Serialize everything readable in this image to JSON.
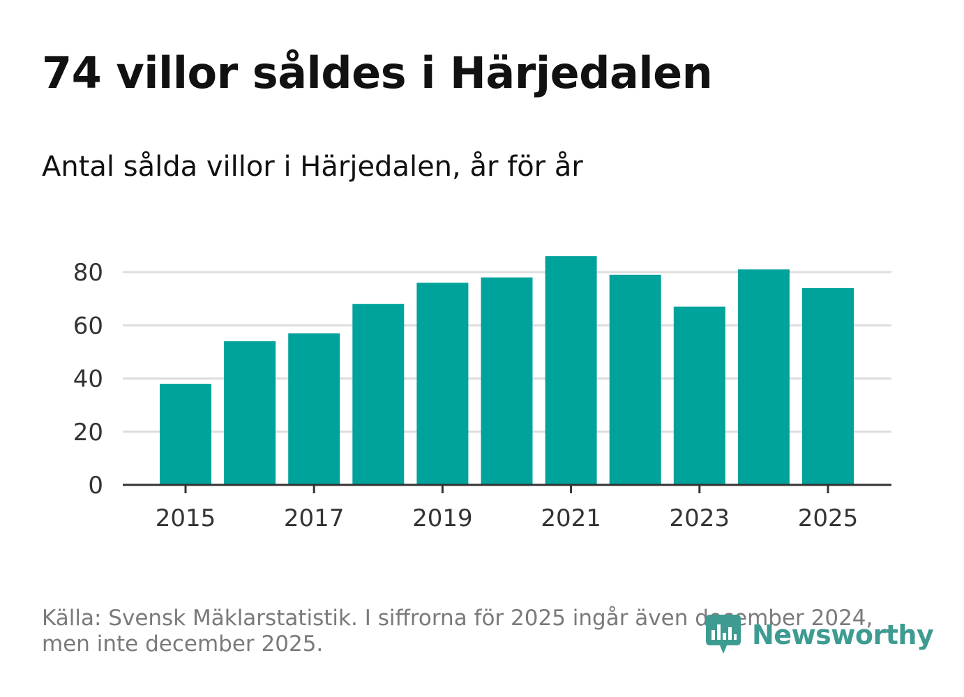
{
  "header": {
    "title": "74 villor såldes i Härjedalen",
    "subtitle": "Antal sålda villor i Härjedalen, år för år"
  },
  "chart_data": {
    "type": "bar",
    "categories": [
      "2015",
      "2016",
      "2017",
      "2018",
      "2019",
      "2020",
      "2021",
      "2022",
      "2023",
      "2024",
      "2025"
    ],
    "values": [
      38,
      54,
      57,
      68,
      76,
      78,
      86,
      79,
      67,
      81,
      74
    ],
    "x_tick_labels": [
      "2015",
      "2017",
      "2019",
      "2021",
      "2023",
      "2025"
    ],
    "y_ticks": [
      0,
      20,
      40,
      60,
      80
    ],
    "ylim": [
      0,
      90
    ],
    "title": "74 villor såldes i Härjedalen",
    "subtitle": "Antal sålda villor i Härjedalen, år för år",
    "xlabel": "",
    "ylabel": "",
    "grid": true,
    "bar_color": "#00a39b"
  },
  "footer": {
    "source": "Källa: Svensk Mäklarstatistik. I siffrorna för 2025 ingår även december 2024, men inte december 2025.",
    "brand": "Newsworthy",
    "brand_color": "#3d9b91",
    "logo_icon": "newsworthy-logo-icon"
  }
}
